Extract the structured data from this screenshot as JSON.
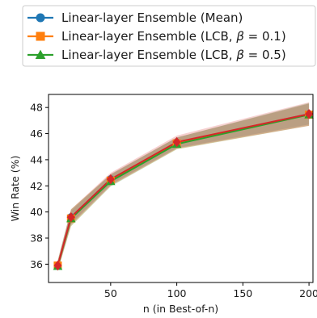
{
  "chart_data": {
    "type": "line",
    "title": "",
    "xlabel": "n (in Best-of-n)",
    "ylabel": "Win Rate (%)",
    "xlim": [
      3,
      203
    ],
    "ylim": [
      34.6,
      49.0
    ],
    "xticks": [
      50,
      100,
      150,
      200
    ],
    "yticks": [
      36,
      38,
      40,
      42,
      44,
      46,
      48
    ],
    "grid": false,
    "legend_placement": "top, above plot",
    "x": [
      10,
      20,
      50,
      100,
      200
    ],
    "series": [
      {
        "name": "Linear-layer Ensemble (Mean)",
        "name_prefix": "Linear-layer Ensemble (Mean)",
        "name_beta": "",
        "name_suffix": "",
        "color": "#1f77b4",
        "marker": "circle",
        "values": [
          35.9,
          39.6,
          42.5,
          45.3,
          47.5
        ],
        "band_low": [
          35.6,
          39.1,
          42.1,
          44.9,
          46.7
        ],
        "band_high": [
          36.2,
          40.1,
          42.9,
          45.7,
          48.3
        ]
      },
      {
        "name": "Linear-layer Ensemble (LCB, β = 0.1)",
        "name_prefix": "Linear-layer Ensemble (LCB, ",
        "name_beta": "β",
        "name_suffix": " = 0.1)",
        "color": "#ff7f0e",
        "marker": "square",
        "values": [
          35.9,
          39.5,
          42.4,
          45.25,
          47.45
        ],
        "band_low": [
          35.5,
          38.9,
          42.0,
          44.8,
          46.6
        ],
        "band_high": [
          36.3,
          40.2,
          42.9,
          45.7,
          48.3
        ]
      },
      {
        "name": "Linear-layer Ensemble (LCB, β = 0.5)",
        "name_prefix": "Linear-layer Ensemble (LCB, ",
        "name_beta": "β",
        "name_suffix": " = 0.5)",
        "color": "#2ca02c",
        "marker": "triangle",
        "values": [
          35.85,
          39.5,
          42.35,
          45.2,
          47.45
        ],
        "band_low": [
          35.5,
          38.9,
          41.95,
          44.8,
          46.6
        ],
        "band_high": [
          36.3,
          40.2,
          42.85,
          45.7,
          48.35
        ]
      },
      {
        "name": "",
        "color": "#d62728",
        "marker": "diamond",
        "values": [
          35.9,
          39.6,
          42.5,
          45.35,
          47.5
        ],
        "band_low": [
          35.5,
          39.0,
          42.0,
          44.85,
          46.6
        ],
        "band_high": [
          36.3,
          40.2,
          43.0,
          45.85,
          48.4
        ]
      }
    ]
  }
}
